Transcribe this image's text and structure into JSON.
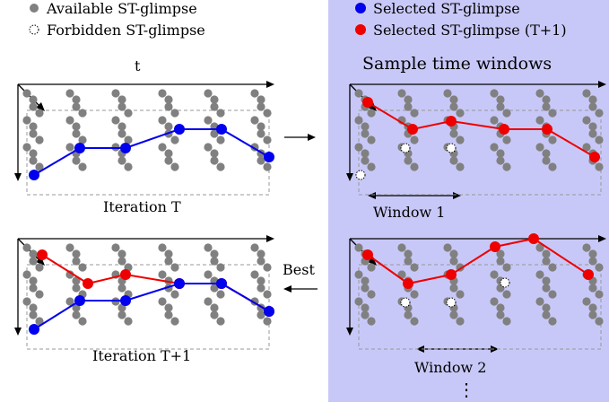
{
  "legend": {
    "available": "Available ST-glimpse",
    "forbidden": "Forbidden ST-glimpse",
    "selected": "Selected ST-glimpse",
    "selected_next": "Selected ST-glimpse (T+1)"
  },
  "panels": {
    "axis_t": "t",
    "iteration_t": "Iteration T",
    "iteration_t1": "Iteration T+1",
    "sample_title": "Sample time windows",
    "window1": "Window 1",
    "window2": "Window 2",
    "best": "Best",
    "ellipsis": "⋮"
  },
  "colors": {
    "available": "#808080",
    "selected": "#0000ee",
    "selected_next": "#ee0000",
    "panel_bg": "#c8c8f8"
  }
}
